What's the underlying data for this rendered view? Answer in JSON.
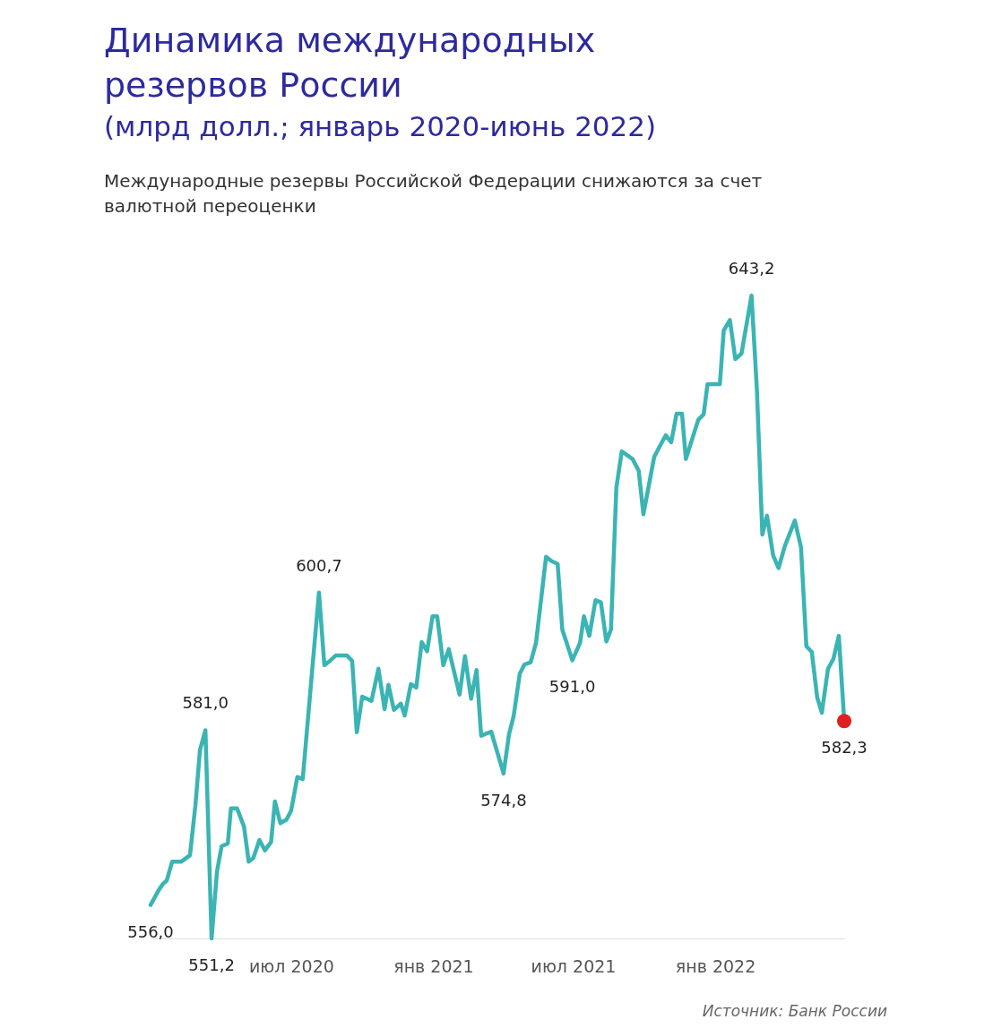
{
  "chart_data": {
    "type": "line",
    "title": "Динамика международных резервов России",
    "subtitle": "(млрд долл.; январь 2020-июнь 2022)",
    "annotations": [
      "Международные резервы Российской Федерации снижаются за счет валютной переоценки",
      "Источник: Банк России"
    ],
    "x": [
      "2020-01-01",
      "2020-01-12",
      "2020-01-17",
      "2020-01-22",
      "2020-01-29",
      "2020-02-10",
      "2020-02-21",
      "2020-02-28",
      "2020-03-05",
      "2020-03-12",
      "2020-03-20",
      "2020-03-27",
      "2020-04-02",
      "2020-04-10",
      "2020-04-14",
      "2020-04-22",
      "2020-05-01",
      "2020-05-07",
      "2020-05-13",
      "2020-05-21",
      "2020-05-28",
      "2020-06-05",
      "2020-06-10",
      "2020-06-17",
      "2020-06-25",
      "2020-07-01",
      "2020-07-09",
      "2020-07-16",
      "2020-07-21",
      "2020-08-06",
      "2020-08-13",
      "2020-08-20",
      "2020-08-28",
      "2020-09-11",
      "2020-09-18",
      "2020-09-24",
      "2020-10-01",
      "2020-10-13",
      "2020-10-22",
      "2020-10-30",
      "2020-11-04",
      "2020-11-11",
      "2020-11-20",
      "2020-11-25",
      "2020-12-03",
      "2020-12-10",
      "2020-12-17",
      "2020-12-24",
      "2020-12-31",
      "2021-01-06",
      "2021-01-14",
      "2021-01-21",
      "2021-02-04",
      "2021-02-11",
      "2021-02-19",
      "2021-02-26",
      "2021-03-04",
      "2021-03-17",
      "2021-04-02",
      "2021-04-09",
      "2021-04-15",
      "2021-04-23",
      "2021-04-29",
      "2021-05-07",
      "2021-05-14",
      "2021-05-27",
      "2021-06-03",
      "2021-06-11",
      "2021-06-17",
      "2021-06-30",
      "2021-07-10",
      "2021-07-15",
      "2021-07-22",
      "2021-07-30",
      "2021-08-06",
      "2021-08-13",
      "2021-08-19",
      "2021-08-26",
      "2021-09-02",
      "2021-09-16",
      "2021-09-24",
      "2021-09-30",
      "2021-10-14",
      "2021-10-22",
      "2021-10-29",
      "2021-11-05",
      "2021-11-12",
      "2021-11-19",
      "2021-11-24",
      "2021-12-10",
      "2021-12-17",
      "2021-12-22",
      "2022-01-07",
      "2022-01-12",
      "2022-01-20",
      "2022-01-27",
      "2022-02-04",
      "2022-02-17",
      "2022-02-24",
      "2022-03-03",
      "2022-03-09",
      "2022-03-17",
      "2022-03-24",
      "2022-04-01",
      "2022-04-14",
      "2022-04-22",
      "2022-04-29",
      "2022-05-06",
      "2022-05-13",
      "2022-05-19",
      "2022-05-27",
      "2022-06-03",
      "2022-06-10",
      "2022-06-17"
    ],
    "xlim": [
      "2020-01-01",
      "2022-06-17"
    ],
    "xticks": [
      {
        "value": "2020-07-01",
        "label": "июл 2020"
      },
      {
        "value": "2021-01-01",
        "label": "янв 2021"
      },
      {
        "value": "2021-07-01",
        "label": "июл 2021"
      },
      {
        "value": "2022-01-01",
        "label": "янв 2022"
      }
    ],
    "tick_labels": "x",
    "series": [
      {
        "color": "#3bb4b4",
        "values": [
          556.0,
          558.2,
          559.0,
          559.5,
          562.2,
          562.2,
          563.1,
          570.2,
          578.2,
          581.0,
          551.2,
          560.8,
          564.4,
          564.8,
          569.8,
          569.8,
          567.2,
          562.2,
          562.7,
          565.3,
          563.8,
          565.0,
          570.8,
          567.7,
          568.2,
          569.5,
          574.3,
          574.0,
          580.4,
          600.7,
          590.3,
          590.9,
          591.7,
          591.7,
          590.9,
          580.7,
          585.8,
          585.2,
          589.8,
          584.0,
          587.5,
          583.9,
          584.8,
          583.1,
          587.6,
          587.1,
          593.6,
          592.3,
          597.3,
          597.3,
          590.3,
          592.6,
          586.1,
          591.6,
          585.5,
          589.6,
          580.2,
          580.8,
          574.8,
          580.4,
          583.0,
          589.1,
          590.4,
          590.7,
          593.5,
          605.8,
          605.2,
          604.8,
          595.4,
          591.0,
          593.5,
          597.3,
          594.5,
          599.6,
          599.3,
          593.7,
          595.4,
          615.7,
          620.9,
          619.8,
          618.1,
          611.9,
          620.1,
          621.8,
          623.2,
          622.2,
          626.3,
          626.3,
          619.8,
          625.4,
          626.2,
          630.5,
          630.5,
          638.2,
          639.7,
          634.1,
          634.9,
          643.2,
          629.6,
          609.0,
          611.7,
          606.0,
          604.2,
          607.3,
          611.0,
          607.2,
          593.0,
          592.2,
          585.7,
          583.5,
          589.8,
          591.2,
          594.5,
          582.3
        ],
        "value_labels": [
          "556,0",
          null,
          null,
          null,
          null,
          null,
          null,
          null,
          null,
          "581,0",
          "551,2",
          null,
          null,
          null,
          null,
          null,
          null,
          null,
          null,
          null,
          null,
          null,
          null,
          null,
          null,
          null,
          null,
          null,
          null,
          "600,7",
          null,
          null,
          null,
          null,
          null,
          null,
          null,
          null,
          null,
          null,
          null,
          null,
          null,
          null,
          null,
          null,
          null,
          null,
          null,
          null,
          null,
          null,
          null,
          null,
          null,
          null,
          null,
          null,
          "574,8",
          null,
          null,
          null,
          null,
          null,
          null,
          null,
          null,
          null,
          null,
          "591,0",
          null,
          null,
          null,
          null,
          null,
          null,
          null,
          null,
          null,
          null,
          null,
          null,
          null,
          null,
          null,
          null,
          null,
          null,
          null,
          null,
          null,
          null,
          null,
          null,
          null,
          null,
          null,
          "643,2",
          null,
          null,
          null,
          null,
          null,
          null,
          null,
          null,
          null,
          null,
          null,
          null,
          null,
          null,
          null,
          "582,3"
        ]
      },
      {
        "type": "scatter",
        "color": "#e02020",
        "marker": "circle",
        "x": [
          "2022-06-17"
        ],
        "values": [
          582.3
        ]
      }
    ]
  }
}
